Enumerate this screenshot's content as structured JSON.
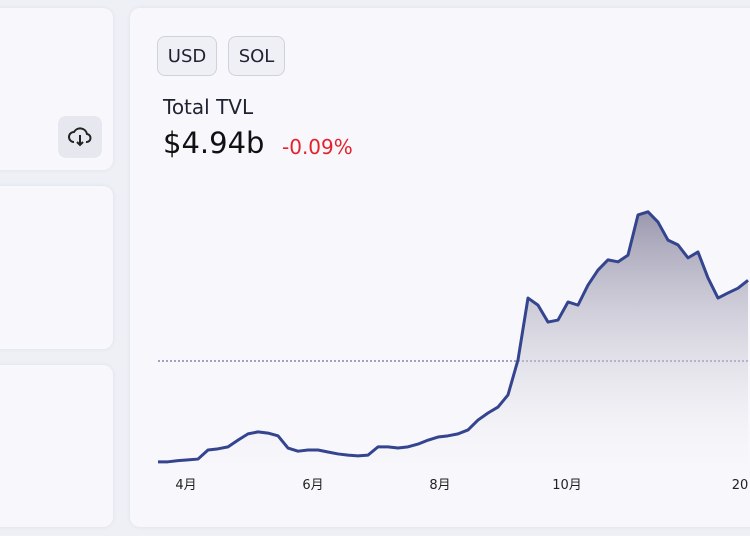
{
  "buttons": [
    "USD",
    "SOL"
  ],
  "chart_data": {
    "type": "area",
    "title": "Total TVL",
    "value_label": "$4.94b",
    "change": "-0.09%",
    "color": "#34448f",
    "x_ticks": [
      "4月",
      "6月",
      "8月",
      "10月",
      "20"
    ],
    "values": [
      0.33,
      0.33,
      0.36,
      0.38,
      0.4,
      0.63,
      0.66,
      0.71,
      0.88,
      1.04,
      1.09,
      1.06,
      0.99,
      0.68,
      0.6,
      0.63,
      0.63,
      0.58,
      0.53,
      0.5,
      0.48,
      0.5,
      0.71,
      0.71,
      0.68,
      0.71,
      0.78,
      0.88,
      0.96,
      0.99,
      1.04,
      1.14,
      1.39,
      1.57,
      1.72,
      2.03,
      2.92,
      4.49,
      4.31,
      3.88,
      3.93,
      4.39,
      4.31,
      4.82,
      5.2,
      5.46,
      5.41,
      5.58,
      6.6,
      6.68,
      6.42,
      5.96,
      5.84,
      5.51,
      5.66,
      5.0,
      4.49,
      4.62,
      4.74,
      4.94
    ]
  }
}
